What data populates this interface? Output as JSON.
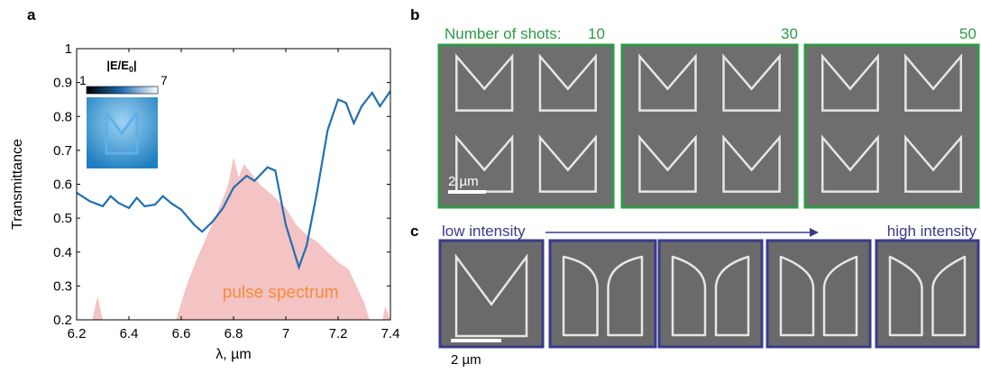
{
  "chart_data": {
    "type": "line",
    "x_label": "λ, µm",
    "y_label": "Transmittance",
    "xlim": [
      6.2,
      7.4
    ],
    "xticks": [
      6.2,
      6.4,
      6.6,
      6.8,
      7,
      7.2,
      7.4
    ],
    "ylim": [
      0.2,
      1
    ],
    "yticks": [
      0.2,
      0.3,
      0.4,
      0.5,
      0.6,
      0.7,
      0.8,
      0.9,
      1
    ],
    "series": [
      {
        "kind": "line",
        "color": "#1f6fb2",
        "x": [
          6.2,
          6.25,
          6.3,
          6.33,
          6.36,
          6.4,
          6.43,
          6.46,
          6.5,
          6.53,
          6.56,
          6.6,
          6.65,
          6.68,
          6.72,
          6.76,
          6.8,
          6.85,
          6.88,
          6.93,
          6.96,
          7.0,
          7.05,
          7.08,
          7.12,
          7.16,
          7.2,
          7.23,
          7.26,
          7.29,
          7.33,
          7.36,
          7.4
        ],
        "values": [
          0.575,
          0.55,
          0.535,
          0.565,
          0.545,
          0.53,
          0.56,
          0.535,
          0.54,
          0.565,
          0.545,
          0.525,
          0.48,
          0.46,
          0.49,
          0.53,
          0.59,
          0.625,
          0.61,
          0.65,
          0.64,
          0.48,
          0.355,
          0.42,
          0.58,
          0.76,
          0.85,
          0.84,
          0.78,
          0.83,
          0.87,
          0.83,
          0.875
        ]
      },
      {
        "kind": "area",
        "name": "pulse spectrum",
        "color": "#f4c3c3",
        "label_color": "#f58a3b",
        "x": [
          6.26,
          6.28,
          6.3,
          6.58,
          6.62,
          6.66,
          6.7,
          6.74,
          6.78,
          6.8,
          6.82,
          6.84,
          6.86,
          6.88,
          6.9,
          6.93,
          6.96,
          7.0,
          7.04,
          7.08,
          7.12,
          7.16,
          7.2,
          7.24,
          7.27,
          7.3,
          7.32,
          7.37,
          7.38,
          7.4
        ],
        "values": [
          0.2,
          0.27,
          0.2,
          0.2,
          0.3,
          0.38,
          0.45,
          0.52,
          0.6,
          0.68,
          0.62,
          0.66,
          0.64,
          0.62,
          0.6,
          0.58,
          0.56,
          0.53,
          0.48,
          0.45,
          0.43,
          0.4,
          0.37,
          0.35,
          0.3,
          0.25,
          0.2,
          0.2,
          0.24,
          0.2
        ]
      }
    ]
  },
  "panels": {
    "a": "a",
    "b": "b",
    "c": "c"
  },
  "inset": {
    "title_main": "|E/E",
    "title_sub": "0",
    "title_end": "|",
    "min": "1",
    "max": "7"
  },
  "panel_b": {
    "label": "Number of shots:",
    "shots": [
      "10",
      "30",
      "50"
    ],
    "scale": "2 µm"
  },
  "panel_c": {
    "low": "low intensity",
    "high": "high intensity",
    "scale": "2 µm"
  }
}
